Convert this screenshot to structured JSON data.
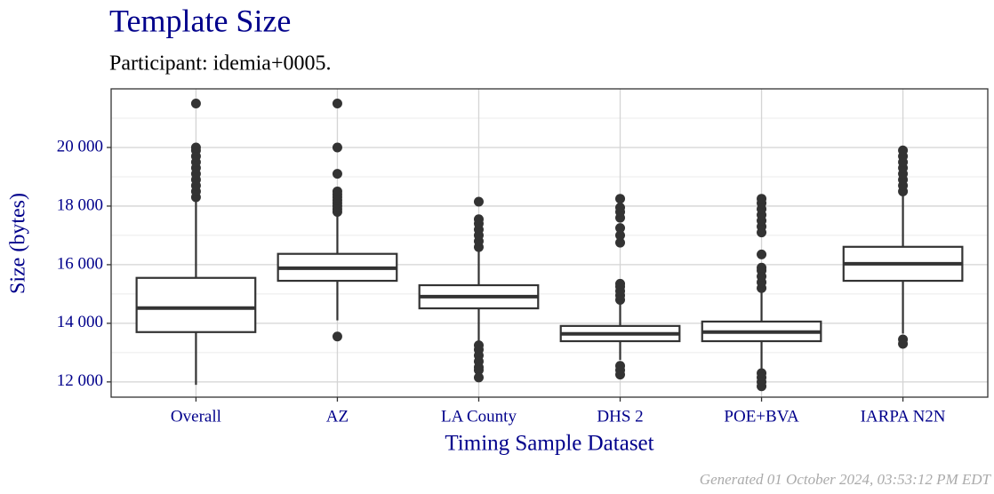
{
  "chart_data": {
    "type": "box",
    "title": "Template Size",
    "subtitle": "Participant: idemia+0005.",
    "x_label": "Timing Sample Dataset",
    "y_label": "Size (bytes)",
    "footer": "Generated 01 October 2024, 03:53:12 PM EDT",
    "categories": [
      "Overall",
      "AZ",
      "LA County",
      "DHS 2",
      "POE+BVA",
      "IARPA N2N"
    ],
    "boxes": [
      {
        "whisker_low": 11900,
        "q1": 13700,
        "median": 14520,
        "q3": 15550,
        "whisker_high": 18250,
        "outliers": [
          18300,
          18500,
          18700,
          18900,
          19100,
          19300,
          19500,
          19700,
          19900,
          20000,
          21500
        ]
      },
      {
        "whisker_low": 14100,
        "q1": 15450,
        "median": 15880,
        "q3": 16370,
        "whisker_high": 17700,
        "outliers": [
          13550,
          17800,
          17900,
          18000,
          18100,
          18200,
          18300,
          18400,
          18500,
          19100,
          20000,
          21500
        ]
      },
      {
        "whisker_low": 13400,
        "q1": 14510,
        "median": 14910,
        "q3": 15300,
        "whisker_high": 16500,
        "outliers": [
          13250,
          13100,
          12900,
          12700,
          12500,
          12400,
          12150,
          16600,
          16800,
          17000,
          17200,
          17400,
          17550,
          18150
        ]
      },
      {
        "whisker_low": 12750,
        "q1": 13390,
        "median": 13640,
        "q3": 13910,
        "whisker_high": 14650,
        "outliers": [
          12550,
          12400,
          12250,
          14800,
          14950,
          15100,
          15250,
          15350,
          16750,
          17000,
          17250,
          17600,
          17800,
          17950,
          18250
        ]
      },
      {
        "whisker_low": 12400,
        "q1": 13390,
        "median": 13700,
        "q3": 14060,
        "whisker_high": 15050,
        "outliers": [
          12300,
          12150,
          12000,
          11850,
          15200,
          15400,
          15600,
          15800,
          15900,
          16350,
          17100,
          17300,
          17500,
          17700,
          17900,
          18100,
          18250
        ]
      },
      {
        "whisker_low": 13650,
        "q1": 15450,
        "median": 16030,
        "q3": 16610,
        "whisker_high": 18400,
        "outliers": [
          13450,
          13300,
          18500,
          18700,
          18900,
          19100,
          19300,
          19500,
          19700,
          19900
        ]
      }
    ],
    "color": "#333333",
    "ylim": [
      11480,
      22000
    ],
    "yticks": [
      {
        "value": 12000,
        "label": "12 000"
      },
      {
        "value": 14000,
        "label": "14 000"
      },
      {
        "value": 16000,
        "label": "16 000"
      },
      {
        "value": 18000,
        "label": "18 000"
      },
      {
        "value": 20000,
        "label": "20 000"
      }
    ],
    "yminorticks": [
      13000,
      15000,
      17000,
      19000,
      21000
    ],
    "grid": true
  }
}
